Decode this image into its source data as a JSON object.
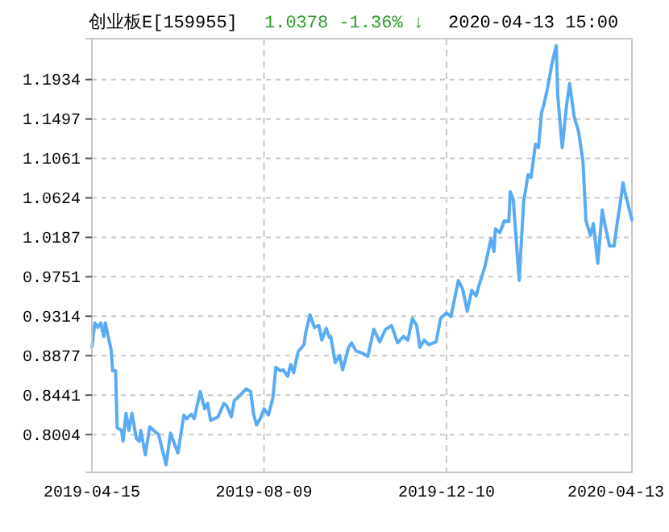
{
  "chart_data": {
    "type": "line",
    "title": "创业板E[159955]",
    "annotations": [
      "1.0378  -1.36% ↓",
      "2020-04-13 15:00"
    ],
    "x": [
      "2019-04-15",
      "2019-04-17",
      "2019-04-19",
      "2019-04-21",
      "2019-04-23",
      "2019-04-24",
      "2019-04-28",
      "2019-04-29",
      "2019-05-01",
      "2019-05-02",
      "2019-05-05",
      "2019-05-06",
      "2019-05-08",
      "2019-05-10",
      "2019-05-12",
      "2019-05-15",
      "2019-05-17",
      "2019-05-18",
      "2019-05-21",
      "2019-05-24",
      "2019-05-30",
      "2019-06-01",
      "2019-06-04",
      "2019-06-07",
      "2019-06-09",
      "2019-06-12",
      "2019-06-16",
      "2019-06-18",
      "2019-06-21",
      "2019-06-23",
      "2019-06-27",
      "2019-06-30",
      "2019-07-02",
      "2019-07-04",
      "2019-07-09",
      "2019-07-13",
      "2019-07-15",
      "2019-07-18",
      "2019-07-20",
      "2019-07-24",
      "2019-07-28",
      "2019-07-31",
      "2019-08-02",
      "2019-08-04",
      "2019-08-07",
      "2019-08-09",
      "2019-08-12",
      "2019-08-15",
      "2019-08-17",
      "2019-08-20",
      "2019-08-22",
      "2019-08-25",
      "2019-08-27",
      "2019-08-29",
      "2019-09-01",
      "2019-09-05",
      "2019-09-06",
      "2019-09-09",
      "2019-09-12",
      "2019-09-15",
      "2019-09-17",
      "2019-09-20",
      "2019-09-22",
      "2019-09-23",
      "2019-09-26",
      "2019-09-29",
      "2019-10-01",
      "2019-10-05",
      "2019-10-07",
      "2019-10-10",
      "2019-10-15",
      "2019-10-18",
      "2019-10-22",
      "2019-10-26",
      "2019-10-30",
      "2019-11-03",
      "2019-11-07",
      "2019-11-11",
      "2019-11-14",
      "2019-11-17",
      "2019-11-20",
      "2019-11-22",
      "2019-11-25",
      "2019-11-28",
      "2019-12-03",
      "2019-12-06",
      "2019-12-10",
      "2019-12-13",
      "2019-12-18",
      "2019-12-21",
      "2019-12-24",
      "2019-12-27",
      "2019-12-30",
      "2020-01-01",
      "2020-01-05",
      "2020-01-09",
      "2020-01-11",
      "2020-01-12",
      "2020-01-15",
      "2020-01-18",
      "2020-01-21",
      "2020-01-22",
      "2020-01-24",
      "2020-01-28",
      "2020-01-31",
      "2020-02-03",
      "2020-02-05",
      "2020-02-08",
      "2020-02-10",
      "2020-02-12",
      "2020-02-14",
      "2020-02-16",
      "2020-02-19",
      "2020-02-22",
      "2020-02-23",
      "2020-02-26",
      "2020-02-29",
      "2020-03-02",
      "2020-03-05",
      "2020-03-08",
      "2020-03-11",
      "2020-03-13",
      "2020-03-16",
      "2020-03-18",
      "2020-03-21",
      "2020-03-24",
      "2020-03-26",
      "2020-03-29",
      "2020-04-01",
      "2020-04-03",
      "2020-04-05",
      "2020-04-07",
      "2020-04-09",
      "2020-04-13"
    ],
    "series": [
      {
        "color": "#5aabf5",
        "values": [
          0.897,
          0.924,
          0.919,
          0.924,
          0.909,
          0.924,
          0.894,
          0.871,
          0.871,
          0.808,
          0.805,
          0.793,
          0.824,
          0.805,
          0.824,
          0.796,
          0.793,
          0.805,
          0.778,
          0.809,
          0.8,
          0.787,
          0.767,
          0.802,
          0.793,
          0.78,
          0.822,
          0.818,
          0.823,
          0.818,
          0.848,
          0.829,
          0.835,
          0.816,
          0.82,
          0.835,
          0.832,
          0.82,
          0.838,
          0.844,
          0.851,
          0.848,
          0.823,
          0.811,
          0.82,
          0.829,
          0.822,
          0.841,
          0.875,
          0.871,
          0.872,
          0.865,
          0.878,
          0.869,
          0.892,
          0.9,
          0.912,
          0.933,
          0.919,
          0.921,
          0.905,
          0.918,
          0.908,
          0.909,
          0.88,
          0.888,
          0.872,
          0.897,
          0.902,
          0.893,
          0.89,
          0.887,
          0.917,
          0.903,
          0.917,
          0.921,
          0.902,
          0.909,
          0.905,
          0.929,
          0.921,
          0.897,
          0.905,
          0.9,
          0.903,
          0.929,
          0.935,
          0.931,
          0.971,
          0.961,
          0.937,
          0.96,
          0.954,
          0.966,
          0.987,
          1.017,
          1.003,
          1.028,
          1.024,
          1.037,
          1.036,
          1.069,
          1.061,
          0.971,
          1.058,
          1.088,
          1.085,
          1.122,
          1.118,
          1.156,
          1.168,
          1.183,
          1.21,
          1.231,
          1.176,
          1.118,
          1.165,
          1.189,
          1.153,
          1.136,
          1.103,
          1.037,
          1.021,
          1.034,
          0.99,
          1.049,
          1.031,
          1.009,
          1.009,
          1.034,
          1.055,
          1.079,
          1.064,
          1.038
        ]
      }
    ],
    "xlim": [
      "2019-04-15",
      "2020-04-13"
    ],
    "xticks": [
      {
        "value": "2019-04-15",
        "label": "2019-04-15"
      },
      {
        "value": "2019-08-09",
        "label": "2019-08-09"
      },
      {
        "value": "2019-12-10",
        "label": "2019-12-10"
      },
      {
        "value": "2020-04-13",
        "label": "2020-04-13"
      }
    ],
    "ylim": [
      0.7586,
      1.2386
    ],
    "yticks": [
      {
        "value": 0.8004,
        "label": "0.8004"
      },
      {
        "value": 0.8441,
        "label": "0.8441"
      },
      {
        "value": 0.8877,
        "label": "0.8877"
      },
      {
        "value": 0.9314,
        "label": "0.9314"
      },
      {
        "value": 0.9751,
        "label": "0.9751"
      },
      {
        "value": 1.0187,
        "label": "1.0187"
      },
      {
        "value": 1.0624,
        "label": "1.0624"
      },
      {
        "value": 1.1061,
        "label": "1.1061"
      },
      {
        "value": 1.1497,
        "label": "1.1497"
      },
      {
        "value": 1.1934,
        "label": "1.1934"
      }
    ],
    "grid": true,
    "marker": "none",
    "line_style": "solid"
  }
}
